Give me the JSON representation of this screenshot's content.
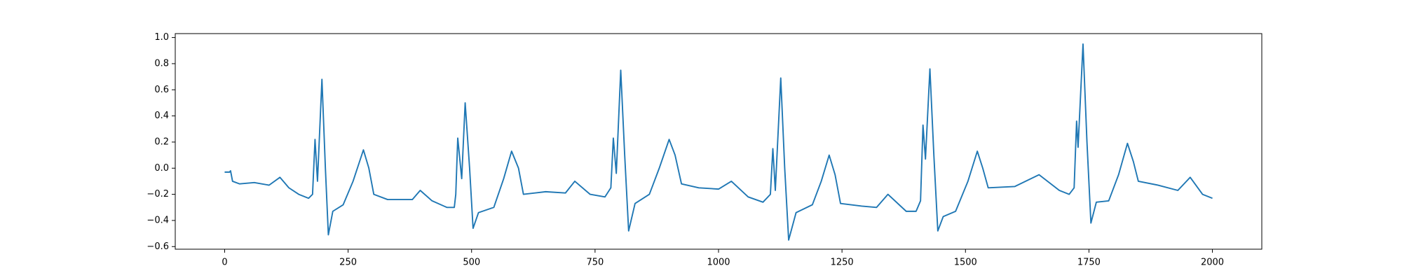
{
  "chart_data": {
    "type": "line",
    "x": [
      0,
      10,
      12,
      16,
      30,
      60,
      90,
      112,
      130,
      150,
      170,
      178,
      183,
      188,
      197,
      204,
      210,
      219,
      240,
      260,
      281,
      292,
      302,
      330,
      380,
      396,
      420,
      450,
      465,
      468,
      472,
      480,
      487,
      496,
      503,
      514,
      545,
      565,
      581,
      595,
      605,
      650,
      690,
      709,
      740,
      770,
      782,
      787,
      793,
      802,
      810,
      818,
      831,
      860,
      880,
      900,
      912,
      925,
      960,
      1000,
      1026,
      1060,
      1090,
      1105,
      1110,
      1115,
      1126,
      1134,
      1142,
      1157,
      1190,
      1208,
      1224,
      1236,
      1247,
      1290,
      1320,
      1343,
      1380,
      1400,
      1409,
      1414,
      1419,
      1428,
      1436,
      1444,
      1455,
      1480,
      1505,
      1524,
      1535,
      1546,
      1600,
      1649,
      1690,
      1710,
      1720,
      1725,
      1728,
      1738,
      1746,
      1754,
      1765,
      1790,
      1810,
      1828,
      1840,
      1850,
      1890,
      1930,
      1955,
      1980,
      2000
    ],
    "values": [
      -0.03,
      -0.03,
      -0.02,
      -0.1,
      -0.12,
      -0.11,
      -0.13,
      -0.07,
      -0.15,
      -0.2,
      -0.23,
      -0.2,
      0.22,
      -0.1,
      0.68,
      0.0,
      -0.51,
      -0.33,
      -0.28,
      -0.1,
      0.14,
      0.0,
      -0.2,
      -0.24,
      -0.24,
      -0.17,
      -0.25,
      -0.3,
      -0.3,
      -0.2,
      0.23,
      -0.08,
      0.5,
      0.0,
      -0.46,
      -0.34,
      -0.3,
      -0.08,
      0.13,
      0.0,
      -0.2,
      -0.18,
      -0.19,
      -0.1,
      -0.2,
      -0.22,
      -0.15,
      0.23,
      -0.04,
      0.75,
      0.1,
      -0.48,
      -0.27,
      -0.2,
      0.0,
      0.22,
      0.1,
      -0.12,
      -0.15,
      -0.16,
      -0.1,
      -0.22,
      -0.26,
      -0.2,
      0.15,
      -0.17,
      0.69,
      0.0,
      -0.55,
      -0.34,
      -0.28,
      -0.1,
      0.1,
      -0.05,
      -0.27,
      -0.29,
      -0.3,
      -0.2,
      -0.33,
      -0.33,
      -0.25,
      0.33,
      0.07,
      0.76,
      0.1,
      -0.48,
      -0.37,
      -0.33,
      -0.1,
      0.13,
      0.0,
      -0.15,
      -0.14,
      -0.05,
      -0.17,
      -0.2,
      -0.15,
      0.36,
      0.16,
      0.95,
      0.2,
      -0.42,
      -0.26,
      -0.25,
      -0.05,
      0.19,
      0.05,
      -0.1,
      -0.13,
      -0.17,
      -0.07,
      -0.2,
      -0.23
    ],
    "color": "#1f77b4",
    "xlim": [
      -100,
      2100
    ],
    "xticks": [
      0,
      250,
      500,
      750,
      1000,
      1250,
      1500,
      1750,
      2000
    ],
    "ylim": [
      -0.62,
      1.03
    ],
    "yticks": [
      {
        "value": -0.6,
        "label": "−0.6"
      },
      {
        "value": -0.4,
        "label": "−0.4"
      },
      {
        "value": -0.2,
        "label": "−0.2"
      },
      {
        "value": 0,
        "label": "0.0"
      },
      0.2,
      0.4,
      0.6,
      0.8,
      {
        "value": 1,
        "label": "1.0"
      }
    ],
    "grid": false
  }
}
